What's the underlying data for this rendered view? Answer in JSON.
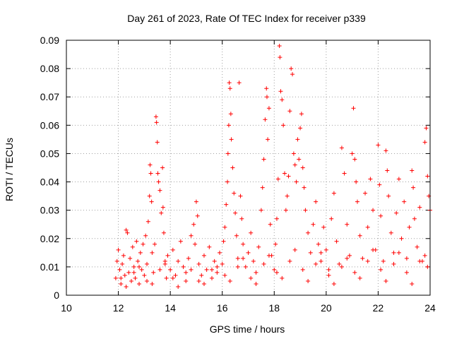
{
  "chart_data": {
    "type": "scatter",
    "title": "Day 261 of 2023, Rate Of TEC Index for receiver p339",
    "xlabel": "GPS time / hours",
    "ylabel": "ROTI / TECUs",
    "xlim": [
      10,
      24
    ],
    "ylim": [
      0,
      0.09
    ],
    "xticks": [
      "10",
      "12",
      "14",
      "16",
      "18",
      "20",
      "22",
      "24"
    ],
    "yticks": [
      "0",
      "0.01",
      "0.02",
      "0.03",
      "0.04",
      "0.05",
      "0.06",
      "0.07",
      "0.08",
      "0.09"
    ],
    "grid": true,
    "marker": "plus",
    "color": "#ff0000",
    "series": [
      {
        "points": [
          [
            11.9,
            0.006
          ],
          [
            11.95,
            0.012
          ],
          [
            12.0,
            0.016
          ],
          [
            12.05,
            0.009
          ],
          [
            12.1,
            0.004
          ],
          [
            12.15,
            0.011
          ],
          [
            12.2,
            0.014
          ],
          [
            12.25,
            0.007
          ],
          [
            12.3,
            0.023
          ],
          [
            12.35,
            0.022
          ],
          [
            12.4,
            0.008
          ],
          [
            12.45,
            0.013
          ],
          [
            12.5,
            0.005
          ],
          [
            12.55,
            0.017
          ],
          [
            12.6,
            0.01
          ],
          [
            12.65,
            0.006
          ],
          [
            12.7,
            0.019
          ],
          [
            12.75,
            0.012
          ],
          [
            12.8,
            0.004
          ],
          [
            12.85,
            0.015
          ],
          [
            12.9,
            0.009
          ],
          [
            12.95,
            0.018
          ],
          [
            13.0,
            0.007
          ],
          [
            13.05,
            0.021
          ],
          [
            13.1,
            0.011
          ],
          [
            13.15,
            0.026
          ],
          [
            13.2,
            0.035
          ],
          [
            13.22,
            0.046
          ],
          [
            13.25,
            0.043
          ],
          [
            13.28,
            0.033
          ],
          [
            13.3,
            0.015
          ],
          [
            13.35,
            0.008
          ],
          [
            13.4,
            0.018
          ],
          [
            13.45,
            0.063
          ],
          [
            13.47,
            0.061
          ],
          [
            13.5,
            0.054
          ],
          [
            13.52,
            0.043
          ],
          [
            13.55,
            0.04
          ],
          [
            13.6,
            0.037
          ],
          [
            13.65,
            0.029
          ],
          [
            13.7,
            0.045
          ],
          [
            13.72,
            0.031
          ],
          [
            13.75,
            0.022
          ],
          [
            13.8,
            0.012
          ],
          [
            13.85,
            0.006
          ],
          [
            13.9,
            0.014
          ],
          [
            14.0,
            0.009
          ],
          [
            14.1,
            0.016
          ],
          [
            14.2,
            0.007
          ],
          [
            14.3,
            0.012
          ],
          [
            14.4,
            0.019
          ],
          [
            14.5,
            0.01
          ],
          [
            14.6,
            0.005
          ],
          [
            14.7,
            0.013
          ],
          [
            14.8,
            0.021
          ],
          [
            14.9,
            0.025
          ],
          [
            14.95,
            0.018
          ],
          [
            15.0,
            0.033
          ],
          [
            15.05,
            0.028
          ],
          [
            15.1,
            0.011
          ],
          [
            15.2,
            0.007
          ],
          [
            15.3,
            0.014
          ],
          [
            15.4,
            0.009
          ],
          [
            15.5,
            0.017
          ],
          [
            15.6,
            0.006
          ],
          [
            15.7,
            0.012
          ],
          [
            15.8,
            0.008
          ],
          [
            15.9,
            0.015
          ],
          [
            16.0,
            0.011
          ],
          [
            16.05,
            0.019
          ],
          [
            16.1,
            0.024
          ],
          [
            16.15,
            0.032
          ],
          [
            16.2,
            0.04
          ],
          [
            16.22,
            0.05
          ],
          [
            16.25,
            0.06
          ],
          [
            16.27,
            0.075
          ],
          [
            16.3,
            0.073
          ],
          [
            16.33,
            0.064
          ],
          [
            16.35,
            0.055
          ],
          [
            16.4,
            0.045
          ],
          [
            16.45,
            0.036
          ],
          [
            16.5,
            0.029
          ],
          [
            16.55,
            0.021
          ],
          [
            16.6,
            0.013
          ],
          [
            16.65,
            0.075
          ],
          [
            16.7,
            0.035
          ],
          [
            16.75,
            0.027
          ],
          [
            16.8,
            0.018
          ],
          [
            16.9,
            0.01
          ],
          [
            17.0,
            0.015
          ],
          [
            17.1,
            0.022
          ],
          [
            17.2,
            0.012
          ],
          [
            17.3,
            0.008
          ],
          [
            17.4,
            0.017
          ],
          [
            17.5,
            0.03
          ],
          [
            17.55,
            0.038
          ],
          [
            17.6,
            0.048
          ],
          [
            17.65,
            0.062
          ],
          [
            17.7,
            0.073
          ],
          [
            17.72,
            0.07
          ],
          [
            17.75,
            0.055
          ],
          [
            17.8,
            0.066
          ],
          [
            17.85,
            0.025
          ],
          [
            17.9,
            0.014
          ],
          [
            18.0,
            0.009
          ],
          [
            18.05,
            0.018
          ],
          [
            18.1,
            0.027
          ],
          [
            18.15,
            0.041
          ],
          [
            18.2,
            0.088
          ],
          [
            18.22,
            0.084
          ],
          [
            18.25,
            0.072
          ],
          [
            18.3,
            0.069
          ],
          [
            18.35,
            0.06
          ],
          [
            18.4,
            0.043
          ],
          [
            18.45,
            0.03
          ],
          [
            18.5,
            0.035
          ],
          [
            18.55,
            0.042
          ],
          [
            18.6,
            0.065
          ],
          [
            18.65,
            0.08
          ],
          [
            18.7,
            0.078
          ],
          [
            18.75,
            0.05
          ],
          [
            18.8,
            0.046
          ],
          [
            18.85,
            0.04
          ],
          [
            18.9,
            0.055
          ],
          [
            18.95,
            0.048
          ],
          [
            19.0,
            0.059
          ],
          [
            19.05,
            0.064
          ],
          [
            19.1,
            0.045
          ],
          [
            19.15,
            0.038
          ],
          [
            19.2,
            0.03
          ],
          [
            19.3,
            0.022
          ],
          [
            19.4,
            0.015
          ],
          [
            19.5,
            0.025
          ],
          [
            19.6,
            0.033
          ],
          [
            19.7,
            0.018
          ],
          [
            19.8,
            0.012
          ],
          [
            19.9,
            0.024
          ],
          [
            20.0,
            0.016
          ],
          [
            20.1,
            0.009
          ],
          [
            20.2,
            0.027
          ],
          [
            20.3,
            0.036
          ],
          [
            20.4,
            0.019
          ],
          [
            20.5,
            0.011
          ],
          [
            20.6,
            0.052
          ],
          [
            20.7,
            0.043
          ],
          [
            20.8,
            0.025
          ],
          [
            20.9,
            0.014
          ],
          [
            21.0,
            0.05
          ],
          [
            21.05,
            0.066
          ],
          [
            21.1,
            0.048
          ],
          [
            21.15,
            0.04
          ],
          [
            21.2,
            0.033
          ],
          [
            21.3,
            0.021
          ],
          [
            21.4,
            0.013
          ],
          [
            21.5,
            0.036
          ],
          [
            21.6,
            0.024
          ],
          [
            21.7,
            0.041
          ],
          [
            21.8,
            0.03
          ],
          [
            21.9,
            0.016
          ],
          [
            22.0,
            0.053
          ],
          [
            22.05,
            0.039
          ],
          [
            22.1,
            0.028
          ],
          [
            22.2,
            0.012
          ],
          [
            22.3,
            0.051
          ],
          [
            22.35,
            0.044
          ],
          [
            22.4,
            0.035
          ],
          [
            22.5,
            0.022
          ],
          [
            22.6,
            0.015
          ],
          [
            22.7,
            0.029
          ],
          [
            22.8,
            0.041
          ],
          [
            22.9,
            0.02
          ],
          [
            23.0,
            0.033
          ],
          [
            23.1,
            0.013
          ],
          [
            23.2,
            0.024
          ],
          [
            23.3,
            0.044
          ],
          [
            23.35,
            0.038
          ],
          [
            23.4,
            0.027
          ],
          [
            23.5,
            0.017
          ],
          [
            23.6,
            0.031
          ],
          [
            23.7,
            0.012
          ],
          [
            23.8,
            0.054
          ],
          [
            23.85,
            0.059
          ],
          [
            23.9,
            0.042
          ],
          [
            23.95,
            0.035
          ],
          [
            24.0,
            0.03
          ],
          [
            12.1,
            0.006
          ],
          [
            12.6,
            0.008
          ],
          [
            13.1,
            0.005
          ],
          [
            13.6,
            0.009
          ],
          [
            14.1,
            0.006
          ],
          [
            14.6,
            0.008
          ],
          [
            15.1,
            0.005
          ],
          [
            15.6,
            0.009
          ],
          [
            16.1,
            0.007
          ],
          [
            16.6,
            0.01
          ],
          [
            17.1,
            0.006
          ],
          [
            17.6,
            0.011
          ],
          [
            18.1,
            0.008
          ],
          [
            18.6,
            0.012
          ],
          [
            19.1,
            0.009
          ],
          [
            19.6,
            0.011
          ],
          [
            20.1,
            0.007
          ],
          [
            20.6,
            0.01
          ],
          [
            21.1,
            0.008
          ],
          [
            21.6,
            0.012
          ],
          [
            22.1,
            0.009
          ],
          [
            22.6,
            0.011
          ],
          [
            23.1,
            0.008
          ],
          [
            23.6,
            0.012
          ],
          [
            23.9,
            0.01
          ],
          [
            12.3,
            0.003
          ],
          [
            13.3,
            0.004
          ],
          [
            14.3,
            0.003
          ],
          [
            15.3,
            0.004
          ],
          [
            16.3,
            0.005
          ],
          [
            17.3,
            0.004
          ],
          [
            18.3,
            0.006
          ],
          [
            19.3,
            0.005
          ],
          [
            20.3,
            0.004
          ],
          [
            21.3,
            0.006
          ],
          [
            22.3,
            0.005
          ],
          [
            23.3,
            0.004
          ],
          [
            12.8,
            0.01
          ],
          [
            13.8,
            0.011
          ],
          [
            14.8,
            0.009
          ],
          [
            15.8,
            0.01
          ],
          [
            16.8,
            0.013
          ],
          [
            17.8,
            0.014
          ],
          [
            18.8,
            0.016
          ],
          [
            19.8,
            0.015
          ],
          [
            20.8,
            0.013
          ],
          [
            21.8,
            0.016
          ],
          [
            22.8,
            0.015
          ],
          [
            23.8,
            0.014
          ]
        ]
      }
    ]
  }
}
